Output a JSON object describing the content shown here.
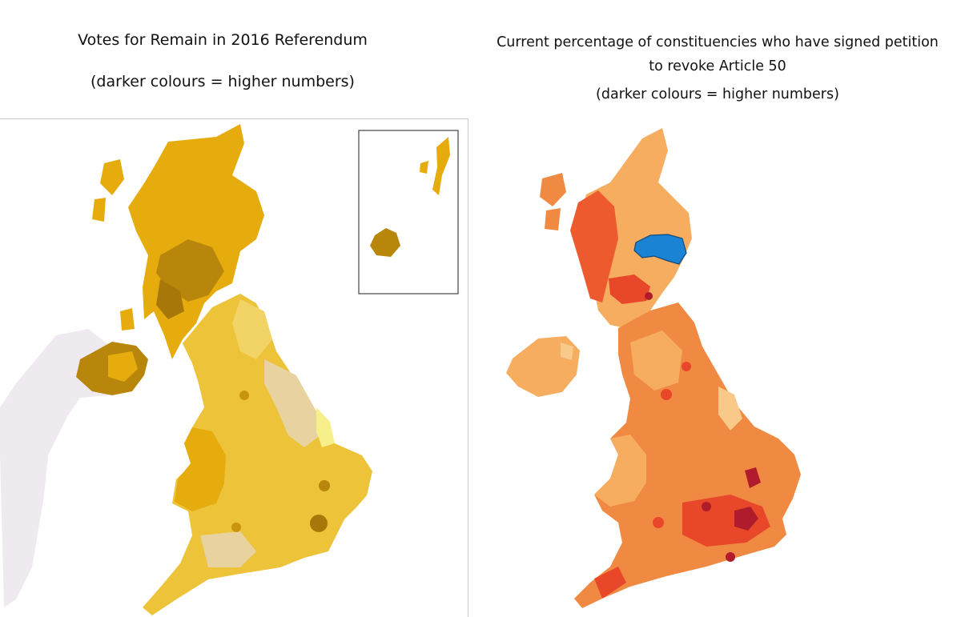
{
  "left_panel": {
    "title": "Votes for Remain in 2016 Referendum",
    "note": "(darker colours = higher numbers)",
    "colors": {
      "base": "#e6ac0e",
      "dark": "#b8860b",
      "mid": "#edc33a",
      "light": "#f2d466",
      "pale": "#e8d3a0",
      "sea": "#ffffff",
      "ireland": "#eeeaf0"
    }
  },
  "right_panel": {
    "title": "Current percentage of constituencies who have signed petition to revoke Article 50",
    "note": "(darker colours = higher numbers)",
    "colors": {
      "base": "#f08a43",
      "light": "#f6ad5f",
      "red": "#e8472a",
      "darkred": "#b01c2b",
      "highlight": "#1a83d4"
    }
  }
}
